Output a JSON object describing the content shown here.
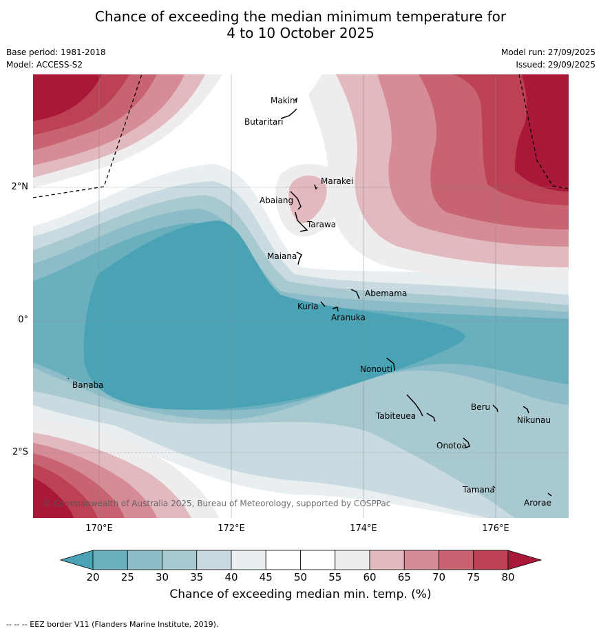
{
  "header": {
    "title_line1": "Chance of exceeding the median minimum temperature for",
    "title_line2": "4 to 10 October 2025",
    "base_period": "Base period: 1981-2018",
    "model": "Model: ACCESS-S2",
    "model_run": "Model run: 27/09/2025",
    "issued": "Issued: 29/09/2025"
  },
  "map": {
    "lat_labels": [
      "2°N",
      "0°",
      "2°S"
    ],
    "lon_labels": [
      "170°E",
      "172°E",
      "174°E",
      "176°E"
    ],
    "copyright": "© Commonwealth of Australia 2025, Bureau of Meteorology, supported by COSPPac",
    "places": [
      "Makin",
      "Butaritari",
      "Marakei",
      "Abaiang",
      "Tarawa",
      "Maiana",
      "Abemama",
      "Kuria",
      "Aranuka",
      "Nonouti",
      "Banaba",
      "Tabiteuea",
      "Beru",
      "Nikunau",
      "Onotoa",
      "Tamana",
      "Arorae"
    ]
  },
  "colorbar": {
    "ticks": [
      "20",
      "25",
      "30",
      "35",
      "40",
      "45",
      "50",
      "55",
      "60",
      "65",
      "70",
      "75",
      "80"
    ],
    "colors": [
      "#4aa3b5",
      "#6aafbd",
      "#8bbcc7",
      "#a8c9d0",
      "#c9dbe0",
      "#e9eff1",
      "#ffffff",
      "#ffffff",
      "#efeced",
      "#e1b9bf",
      "#d68c96",
      "#c86471",
      "#bc4253",
      "#a91838"
    ],
    "label": "Chance of exceeding median min. temp. (%)"
  },
  "footnote": "--  --  -- EEZ border V11 (Flanders Marine Institute, 2019)."
}
